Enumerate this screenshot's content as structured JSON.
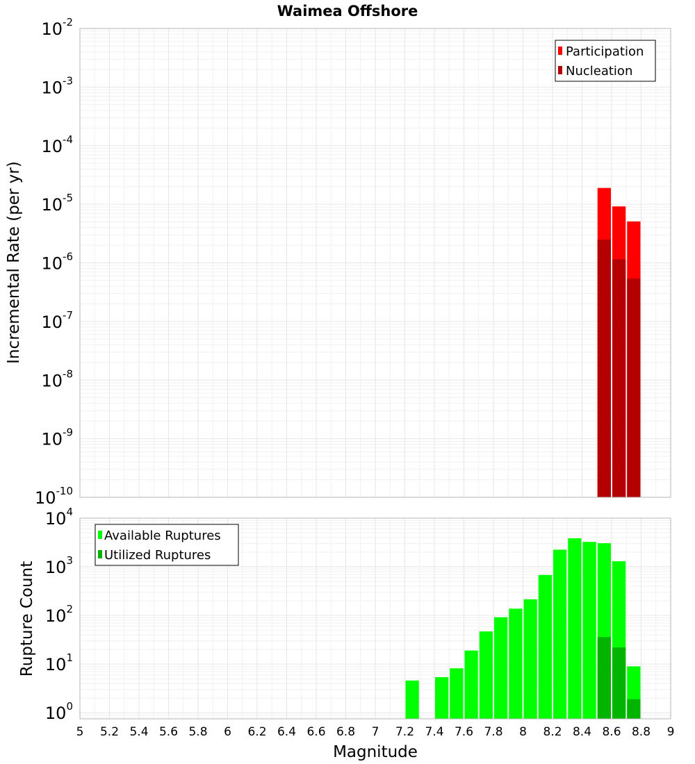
{
  "chart_data": [
    {
      "type": "bar",
      "title": "Waimea Offshore",
      "xlabel": "",
      "ylabel": "Incremental Rate (per yr)",
      "yscale": "log",
      "ylim": [
        1e-10,
        0.01
      ],
      "xlim": [
        5,
        9
      ],
      "grid": true,
      "legend_position": "top-right",
      "y_ticks": [
        {
          "base": "10",
          "exp": "-10"
        },
        {
          "base": "10",
          "exp": "-9"
        },
        {
          "base": "10",
          "exp": "-8"
        },
        {
          "base": "10",
          "exp": "-7"
        },
        {
          "base": "10",
          "exp": "-6"
        },
        {
          "base": "10",
          "exp": "-5"
        },
        {
          "base": "10",
          "exp": "-4"
        },
        {
          "base": "10",
          "exp": "-3"
        },
        {
          "base": "10",
          "exp": "-2"
        }
      ],
      "bin_width": 0.1,
      "series": [
        {
          "name": "Participation",
          "color": "#ff0000",
          "x": [
            8.55,
            8.65,
            8.75
          ],
          "values": [
            1.9e-05,
            9.2e-06,
            5.1e-06
          ]
        },
        {
          "name": "Nucleation",
          "color": "#b40000",
          "x": [
            8.55,
            8.65,
            8.75
          ],
          "values": [
            2.5e-06,
            1.15e-06,
            5.4e-07
          ]
        }
      ]
    },
    {
      "type": "bar",
      "title": "",
      "xlabel": "Magnitude",
      "ylabel": "Rupture Count",
      "yscale": "log",
      "ylim": [
        0.75,
        10000
      ],
      "xlim": [
        5,
        9
      ],
      "grid": true,
      "legend_position": "top-left",
      "x_ticks": [
        "5",
        "5.2",
        "5.4",
        "5.6",
        "5.8",
        "6",
        "6.2",
        "6.4",
        "6.6",
        "6.8",
        "7",
        "7.2",
        "7.4",
        "7.6",
        "7.8",
        "8",
        "8.2",
        "8.4",
        "8.6",
        "8.8",
        "9"
      ],
      "y_ticks": [
        {
          "base": "10",
          "exp": "0"
        },
        {
          "base": "10",
          "exp": "1"
        },
        {
          "base": "10",
          "exp": "2"
        },
        {
          "base": "10",
          "exp": "3"
        },
        {
          "base": "10",
          "exp": "4"
        }
      ],
      "bin_width": 0.1,
      "series": [
        {
          "name": "Available Ruptures",
          "color": "#00ff00",
          "x": [
            7.25,
            7.45,
            7.55,
            7.65,
            7.75,
            7.85,
            7.95,
            8.05,
            8.15,
            8.25,
            8.35,
            8.45,
            8.55,
            8.65,
            8.75
          ],
          "values": [
            4.6,
            5.4,
            8.2,
            19,
            47,
            92,
            138,
            215,
            680,
            2250,
            3850,
            3250,
            3050,
            1300,
            9
          ]
        },
        {
          "name": "Utilized Ruptures",
          "color": "#00b400",
          "x": [
            8.55,
            8.65,
            8.75
          ],
          "values": [
            36,
            22,
            1.9
          ]
        }
      ]
    }
  ]
}
